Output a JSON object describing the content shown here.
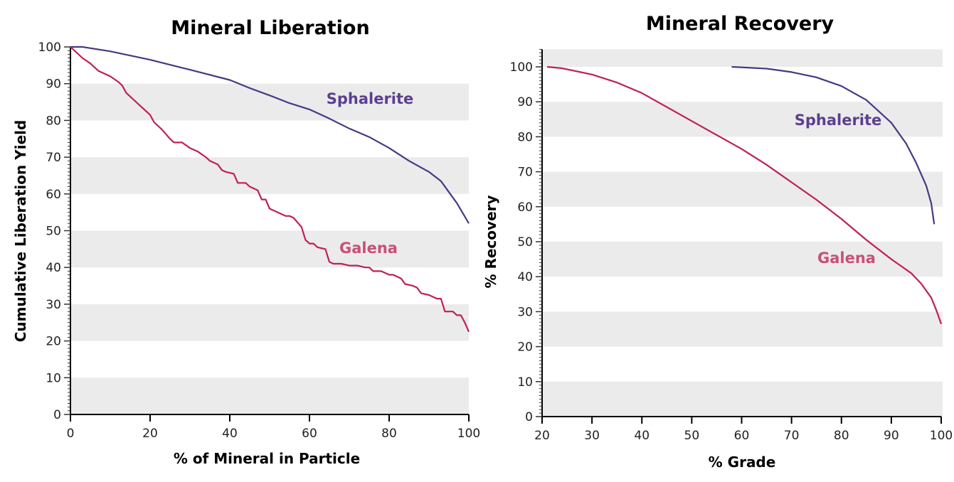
{
  "colors": {
    "sphalerite_line": "#4a3784",
    "sphalerite_label": "#5b3f90",
    "galena_line": "#c0204f",
    "galena_label": "#c8507a",
    "band": "#ebebeb"
  },
  "chart_data": [
    {
      "type": "line",
      "title": "Mineral Liberation",
      "xlabel": "% of Mineral in Particle",
      "ylabel": "Cumulative Liberation Yield",
      "xlim": [
        0,
        100
      ],
      "ylim": [
        0,
        100
      ],
      "xticks": [
        "0",
        "20",
        "40",
        "60",
        "80",
        "100"
      ],
      "yticks": [
        "0",
        "10",
        "20",
        "30",
        "40",
        "50",
        "60",
        "70",
        "80",
        "90",
        "100"
      ],
      "grid": "alternating horizontal bands",
      "series": [
        {
          "name": "Sphalerite",
          "x": [
            0,
            3,
            10,
            20,
            30,
            40,
            45,
            50,
            55,
            60,
            65,
            70,
            75,
            80,
            85,
            90,
            93,
            95,
            97,
            100
          ],
          "y": [
            100,
            100,
            98.8,
            96.5,
            93.8,
            91,
            88.8,
            86.8,
            84.7,
            83,
            80.5,
            77.8,
            75.5,
            72.5,
            69,
            66,
            63.5,
            60.5,
            57.5,
            52
          ]
        },
        {
          "name": "Galena",
          "x": [
            0,
            3,
            5,
            7,
            10,
            12,
            13,
            14,
            16,
            18,
            20,
            21,
            23,
            25,
            26,
            28,
            30,
            32,
            34,
            35,
            37,
            38,
            39,
            41,
            42,
            44,
            45,
            47,
            48,
            49,
            50,
            52,
            54,
            55,
            56,
            58,
            59,
            60,
            61,
            62,
            64,
            65,
            66,
            68,
            70,
            72,
            74,
            75,
            76,
            78,
            80,
            81,
            82,
            83,
            84,
            86,
            87,
            88,
            90,
            92,
            93,
            94,
            96,
            97,
            98,
            99,
            100
          ],
          "y": [
            100,
            97,
            95.5,
            93.5,
            92,
            90.5,
            89.5,
            87.5,
            85.5,
            83.5,
            81.5,
            79.5,
            77.5,
            75,
            74,
            74,
            72.5,
            71.5,
            70,
            69,
            68,
            66.5,
            66,
            65.5,
            63,
            63,
            62,
            61,
            58.5,
            58.5,
            56,
            55,
            54,
            54,
            53.5,
            51,
            47.5,
            46.5,
            46.5,
            45.5,
            45,
            41.5,
            41,
            41,
            40.5,
            40.5,
            40,
            40,
            39,
            39,
            38,
            38,
            37.5,
            37,
            35.5,
            35,
            34.5,
            33,
            32.5,
            31.5,
            31.5,
            28,
            28,
            27,
            27,
            25,
            22.5
          ]
        }
      ]
    },
    {
      "type": "line",
      "title": "Mineral Recovery",
      "xlabel": "% Grade",
      "ylabel": "% Recovery",
      "xlim": [
        20,
        100
      ],
      "ylim": [
        0,
        105
      ],
      "xticks": [
        "20",
        "30",
        "40",
        "50",
        "60",
        "70",
        "80",
        "90",
        "100"
      ],
      "yticks": [
        "0",
        "10",
        "20",
        "30",
        "40",
        "50",
        "60",
        "70",
        "80",
        "90",
        "100"
      ],
      "grid": "alternating horizontal bands",
      "series": [
        {
          "name": "Sphalerite",
          "x": [
            58,
            65,
            70,
            75,
            80,
            85,
            90,
            93,
            95,
            97,
            98,
            98.6
          ],
          "y": [
            100,
            99.5,
            98.5,
            97,
            94.5,
            90.5,
            84,
            78,
            72.5,
            66,
            61,
            55
          ]
        },
        {
          "name": "Galena",
          "x": [
            21,
            24,
            30,
            35,
            40,
            45,
            50,
            55,
            60,
            65,
            70,
            75,
            80,
            85,
            90,
            94,
            96,
            98,
            99,
            100
          ],
          "y": [
            100,
            99.6,
            97.8,
            95.5,
            92.5,
            88.5,
            84.5,
            80.5,
            76.5,
            72,
            67,
            62,
            56.5,
            50.5,
            45,
            41,
            38,
            34,
            30.5,
            26.5
          ]
        }
      ]
    }
  ]
}
